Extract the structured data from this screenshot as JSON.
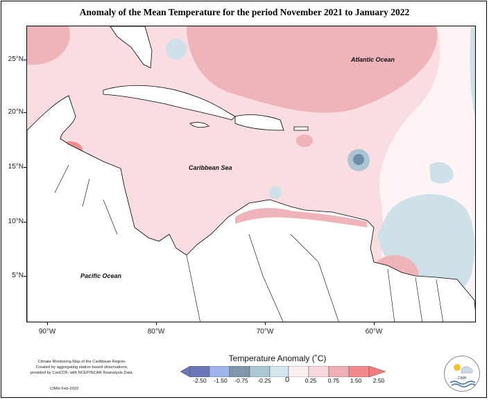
{
  "title": "Anomaly of the Mean Temperature for the period November 2021 to January 2022",
  "axes": {
    "lat_labels": [
      "25°N",
      "20°N",
      "15°N",
      "10°N",
      "5°N"
    ],
    "lon_labels": [
      "90°W",
      "80°W",
      "70°W",
      "60°W"
    ]
  },
  "labels": {
    "atlantic": "Atlantic Ocean",
    "caribbean": "Caribbean Sea",
    "pacific": "Pacific Ocean"
  },
  "footnote": {
    "line1": "Climate Monitoring Map of the Caribbean Region,",
    "line2": "Created by aggregating station based observations,",
    "line3": "provided by CariCOF, with NCEP/NCAR Reanalysis Data.",
    "credit": "CIMH Feb-2022"
  },
  "legend": {
    "title": "Temperature Anomaly (˚C)",
    "ticks": [
      "-2.50",
      "-1.50",
      "-0.75",
      "-0.25",
      "0",
      "0.25",
      "0.75",
      "1.50",
      "2.50"
    ],
    "colors": [
      "#6a78b8",
      "#9fb3ee",
      "#7f97a8",
      "#a9c8d4",
      "#d4e6ec",
      "#fff0f0",
      "#f8d7dc",
      "#eeb0b4",
      "#f58a8c",
      "#f77a7e"
    ]
  },
  "logo": {
    "text": "CIMH"
  }
}
